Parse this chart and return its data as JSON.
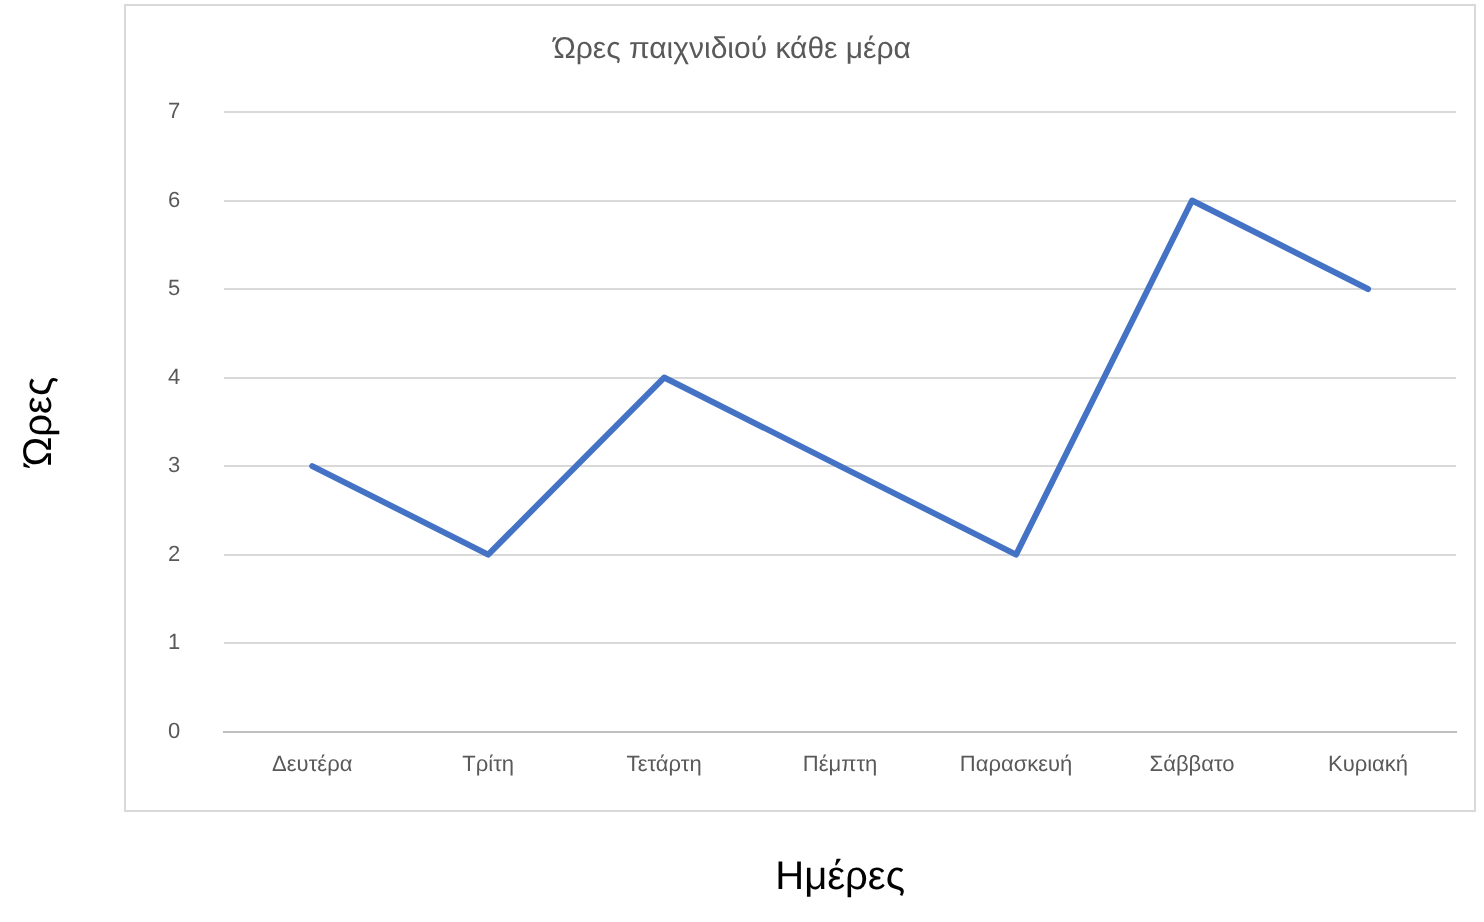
{
  "chart_data": {
    "type": "line",
    "title": "Ώρες παιχνιδιού κάθε μέρα",
    "xlabel": "Ημέρες",
    "ylabel": "Ώρες",
    "categories": [
      "Δευτέρα",
      "Τρίτη",
      "Τετάρτη",
      "Πέμπτη",
      "Παρασκευή",
      "Σάββατο",
      "Κυριακή"
    ],
    "series": [
      {
        "color": "#4472c4",
        "values": [
          3,
          2,
          4,
          3,
          2,
          6,
          5
        ]
      }
    ],
    "ylim": [
      0,
      7
    ],
    "yticks": [
      0,
      1,
      2,
      3,
      4,
      5,
      6,
      7
    ],
    "grid": "y",
    "legend": false,
    "marker": "none",
    "line_style": "solid"
  }
}
